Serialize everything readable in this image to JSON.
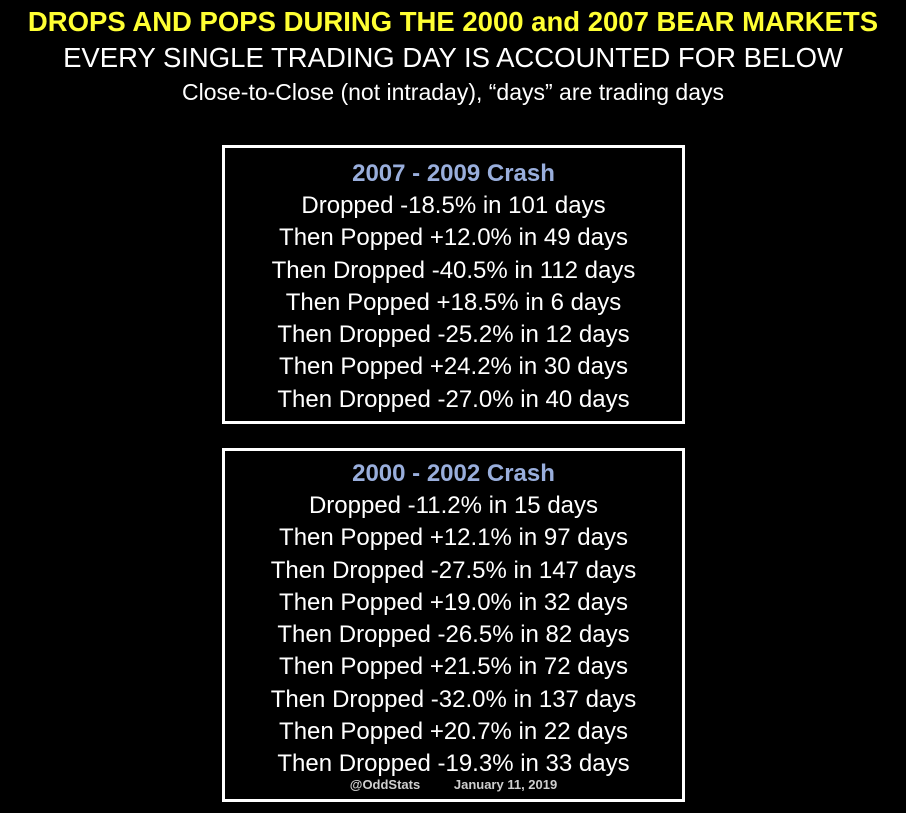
{
  "header": {
    "title": "DROPS AND POPS DURING THE 2000 and 2007 BEAR MARKETS",
    "subtitle": "EVERY SINGLE TRADING DAY IS ACCOUNTED FOR BELOW",
    "note": "Close-to-Close (not intraday), “days” are trading days"
  },
  "colors": {
    "background": "#000000",
    "title": "#ffff33",
    "panel_heading": "#99aedc",
    "text": "#ffffff",
    "panel_border": "#ffffff"
  },
  "panels": [
    {
      "heading": "2007 - 2009 Crash",
      "lines": [
        "Dropped -18.5% in 101 days",
        "Then Popped +12.0% in 49 days",
        "Then Dropped -40.5% in 112 days",
        "Then Popped +18.5% in 6 days",
        "Then Dropped -25.2% in 12 days",
        "Then Popped +24.2% in 30 days",
        "Then Dropped -27.0% in 40 days"
      ]
    },
    {
      "heading": "2000 - 2002 Crash",
      "lines": [
        "Dropped -11.2% in 15 days",
        "Then Popped +12.1% in 97 days",
        "Then Dropped -27.5% in 147 days",
        "Then Popped +19.0% in 32 days",
        "Then Dropped -26.5% in 82 days",
        "Then Popped +21.5% in 72 days",
        "Then Dropped -32.0% in 137 days",
        "Then Popped +20.7% in 22 days",
        "Then Dropped -19.3% in 33 days"
      ],
      "credits": {
        "handle": "@OddStats",
        "date": "January 11, 2019"
      }
    }
  ]
}
